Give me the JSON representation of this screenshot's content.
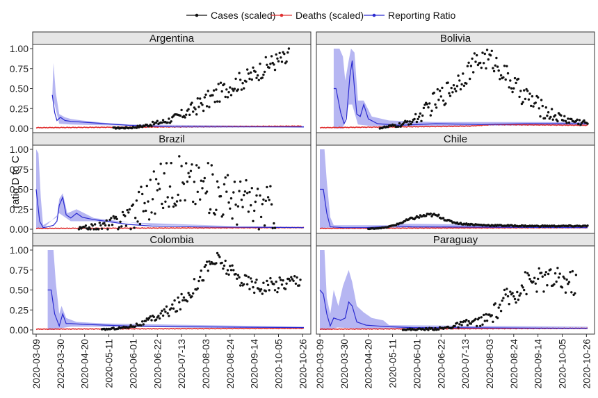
{
  "legend": [
    {
      "label": "Cases (scaled)",
      "color": "#111111"
    },
    {
      "label": "Deaths (scaled)",
      "color": "#e03030"
    },
    {
      "label": "Reporting Ratio",
      "color": "#2a2ad0"
    }
  ],
  "chart_data": {
    "type": "scatter",
    "ylabel": "ratio D to C",
    "ylim": [
      0,
      1
    ],
    "yticks": [
      "0.00",
      "0.25",
      "0.50",
      "0.75",
      "1.00"
    ],
    "xrange": [
      "2020-03-09",
      "2020-10-30"
    ],
    "xticks": [
      "2020-03-09",
      "2020-03-30",
      "2020-04-20",
      "2020-05-11",
      "2020-06-01",
      "2020-06-22",
      "2020-07-13",
      "2020-08-03",
      "2020-08-24",
      "2020-09-14",
      "2020-10-05",
      "2020-10-26"
    ],
    "colors": {
      "cases": "#111111",
      "deaths": "#e03030",
      "ratio": "#2a2ad0",
      "ribbon": "#a9a9f0"
    },
    "panels": [
      {
        "name": "Argentina",
        "cases_start": "2020-05-15",
        "cases": [
          [
            0,
            0.005
          ],
          [
            15,
            0.01
          ],
          [
            25,
            0.03
          ],
          [
            35,
            0.06
          ],
          [
            45,
            0.09
          ],
          [
            55,
            0.14
          ],
          [
            65,
            0.21
          ],
          [
            75,
            0.3
          ],
          [
            85,
            0.38
          ],
          [
            92,
            0.45
          ],
          [
            100,
            0.52
          ],
          [
            108,
            0.58
          ],
          [
            115,
            0.62
          ],
          [
            122,
            0.68
          ],
          [
            130,
            0.76
          ],
          [
            137,
            0.82
          ],
          [
            144,
            0.86
          ],
          [
            150,
            0.85
          ],
          [
            152,
            0.98
          ]
        ],
        "cases_noise": 0.12,
        "deaths": [
          [
            0,
            0.01
          ],
          [
            230,
            0.03
          ]
        ],
        "ratio": [
          [
            14,
            0.42
          ],
          [
            16,
            0.2
          ],
          [
            18,
            0.1
          ],
          [
            21,
            0.14
          ],
          [
            25,
            0.1
          ],
          [
            30,
            0.09
          ],
          [
            40,
            0.08
          ],
          [
            60,
            0.06
          ],
          [
            80,
            0.04
          ],
          [
            100,
            0.03
          ],
          [
            120,
            0.02
          ],
          [
            150,
            0.02
          ],
          [
            232,
            0.02
          ]
        ],
        "ribbon_upper": [
          [
            14,
            0.42
          ],
          [
            15,
            0.82
          ],
          [
            17,
            0.45
          ],
          [
            20,
            0.18
          ],
          [
            25,
            0.14
          ],
          [
            30,
            0.12
          ],
          [
            40,
            0.1
          ],
          [
            60,
            0.07
          ],
          [
            80,
            0.05
          ],
          [
            232,
            0.03
          ]
        ],
        "ribbon_lower": [
          [
            14,
            0.42
          ],
          [
            20,
            0.06
          ],
          [
            30,
            0.05
          ],
          [
            60,
            0.04
          ],
          [
            232,
            0.01
          ]
        ]
      },
      {
        "name": "Bolivia",
        "cases_start": "2020-04-30",
        "cases": [
          [
            0,
            0.005
          ],
          [
            20,
            0.05
          ],
          [
            35,
            0.15
          ],
          [
            45,
            0.3
          ],
          [
            55,
            0.42
          ],
          [
            65,
            0.55
          ],
          [
            75,
            0.7
          ],
          [
            82,
            0.8
          ],
          [
            90,
            0.88
          ],
          [
            98,
            0.85
          ],
          [
            106,
            0.72
          ],
          [
            115,
            0.55
          ],
          [
            125,
            0.42
          ],
          [
            135,
            0.3
          ],
          [
            145,
            0.2
          ],
          [
            155,
            0.14
          ],
          [
            165,
            0.1
          ],
          [
            175,
            0.08
          ],
          [
            180,
            0.07
          ]
        ],
        "cases_noise": 0.14,
        "deaths": [
          [
            0,
            0.01
          ],
          [
            130,
            0.03
          ],
          [
            150,
            0.05
          ],
          [
            232,
            0.04
          ]
        ],
        "ratio": [
          [
            12,
            0.5
          ],
          [
            14,
            0.5
          ],
          [
            18,
            0.2
          ],
          [
            21,
            0.06
          ],
          [
            23,
            0.12
          ],
          [
            26,
            0.65
          ],
          [
            28,
            0.85
          ],
          [
            30,
            0.5
          ],
          [
            32,
            0.18
          ],
          [
            35,
            0.15
          ],
          [
            38,
            0.3
          ],
          [
            42,
            0.12
          ],
          [
            50,
            0.06
          ],
          [
            70,
            0.04
          ],
          [
            100,
            0.06
          ],
          [
            140,
            0.05
          ],
          [
            180,
            0.06
          ],
          [
            232,
            0.06
          ]
        ],
        "ribbon_upper": [
          [
            12,
            1.0
          ],
          [
            17,
            1.0
          ],
          [
            20,
            0.9
          ],
          [
            22,
            0.6
          ],
          [
            25,
            0.85
          ],
          [
            27,
            1.0
          ],
          [
            30,
            0.95
          ],
          [
            33,
            0.35
          ],
          [
            38,
            0.35
          ],
          [
            45,
            0.15
          ],
          [
            60,
            0.1
          ],
          [
            100,
            0.08
          ],
          [
            232,
            0.08
          ]
        ],
        "ribbon_lower": [
          [
            12,
            0.0
          ],
          [
            20,
            0.0
          ],
          [
            25,
            0.3
          ],
          [
            28,
            0.3
          ],
          [
            33,
            0.05
          ],
          [
            45,
            0.03
          ],
          [
            232,
            0.04
          ]
        ]
      },
      {
        "name": "Brazil",
        "cases_start": "2020-04-15",
        "cases": [
          [
            0,
            0.005
          ],
          [
            20,
            0.04
          ],
          [
            35,
            0.1
          ],
          [
            50,
            0.25
          ],
          [
            60,
            0.4
          ],
          [
            70,
            0.5
          ],
          [
            80,
            0.58
          ],
          [
            90,
            0.62
          ],
          [
            100,
            0.55
          ],
          [
            110,
            0.52
          ],
          [
            120,
            0.48
          ],
          [
            130,
            0.4
          ],
          [
            140,
            0.35
          ],
          [
            150,
            0.32
          ],
          [
            160,
            0.28
          ],
          [
            170,
            0.28
          ]
        ],
        "cases_noise": 0.32,
        "deaths": [
          [
            0,
            0.01
          ],
          [
            232,
            0.02
          ]
        ],
        "ratio": [
          [
            0,
            0.5
          ],
          [
            3,
            0.1
          ],
          [
            6,
            0.02
          ],
          [
            10,
            0.03
          ],
          [
            15,
            0.05
          ],
          [
            18,
            0.1
          ],
          [
            20,
            0.3
          ],
          [
            23,
            0.4
          ],
          [
            26,
            0.18
          ],
          [
            30,
            0.14
          ],
          [
            35,
            0.2
          ],
          [
            40,
            0.15
          ],
          [
            50,
            0.12
          ],
          [
            60,
            0.1
          ],
          [
            80,
            0.06
          ],
          [
            100,
            0.04
          ],
          [
            140,
            0.03
          ],
          [
            232,
            0.02
          ]
        ],
        "ribbon_upper": [
          [
            0,
            1.0
          ],
          [
            2,
            0.95
          ],
          [
            4,
            0.4
          ],
          [
            6,
            0.05
          ],
          [
            18,
            0.15
          ],
          [
            20,
            0.38
          ],
          [
            23,
            0.45
          ],
          [
            27,
            0.2
          ],
          [
            35,
            0.25
          ],
          [
            50,
            0.14
          ],
          [
            100,
            0.05
          ],
          [
            232,
            0.03
          ]
        ],
        "ribbon_lower": [
          [
            0,
            0.0
          ],
          [
            6,
            0.01
          ],
          [
            20,
            0.2
          ],
          [
            30,
            0.1
          ],
          [
            50,
            0.1
          ],
          [
            232,
            0.01
          ]
        ]
      },
      {
        "name": "Chile",
        "cases_start": "2020-04-20",
        "cases": [
          [
            0,
            0.005
          ],
          [
            15,
            0.02
          ],
          [
            25,
            0.06
          ],
          [
            35,
            0.12
          ],
          [
            45,
            0.16
          ],
          [
            55,
            0.18
          ],
          [
            62,
            0.16
          ],
          [
            70,
            0.1
          ],
          [
            80,
            0.07
          ],
          [
            100,
            0.05
          ],
          [
            140,
            0.04
          ],
          [
            180,
            0.04
          ],
          [
            190,
            0.04
          ]
        ],
        "cases_noise": 0.04,
        "deaths": [
          [
            0,
            0.01
          ],
          [
            232,
            0.02
          ]
        ],
        "ratio": [
          [
            0,
            0.5
          ],
          [
            3,
            0.5
          ],
          [
            6,
            0.2
          ],
          [
            9,
            0.03
          ],
          [
            20,
            0.02
          ],
          [
            40,
            0.02
          ],
          [
            65,
            0.04
          ],
          [
            80,
            0.03
          ],
          [
            232,
            0.02
          ]
        ],
        "ribbon_upper": [
          [
            0,
            1.0
          ],
          [
            4,
            1.0
          ],
          [
            6,
            0.6
          ],
          [
            9,
            0.15
          ],
          [
            12,
            0.05
          ],
          [
            60,
            0.05
          ],
          [
            70,
            0.07
          ],
          [
            232,
            0.04
          ]
        ],
        "ribbon_lower": [
          [
            0,
            0.0
          ],
          [
            6,
            0.02
          ],
          [
            232,
            0.01
          ]
        ]
      },
      {
        "name": "Colombia",
        "cases_start": "2020-05-05",
        "cases": [
          [
            0,
            0.005
          ],
          [
            20,
            0.03
          ],
          [
            35,
            0.08
          ],
          [
            50,
            0.18
          ],
          [
            65,
            0.3
          ],
          [
            75,
            0.45
          ],
          [
            85,
            0.65
          ],
          [
            92,
            0.8
          ],
          [
            100,
            0.88
          ],
          [
            108,
            0.78
          ],
          [
            115,
            0.68
          ],
          [
            125,
            0.6
          ],
          [
            135,
            0.55
          ],
          [
            145,
            0.55
          ],
          [
            155,
            0.58
          ],
          [
            165,
            0.62
          ],
          [
            172,
            0.65
          ]
        ],
        "cases_noise": 0.1,
        "deaths": [
          [
            0,
            0.01
          ],
          [
            232,
            0.02
          ]
        ],
        "ratio": [
          [
            10,
            0.5
          ],
          [
            13,
            0.5
          ],
          [
            16,
            0.2
          ],
          [
            20,
            0.05
          ],
          [
            23,
            0.2
          ],
          [
            26,
            0.08
          ],
          [
            30,
            0.08
          ],
          [
            40,
            0.07
          ],
          [
            60,
            0.06
          ],
          [
            80,
            0.05
          ],
          [
            110,
            0.04
          ],
          [
            232,
            0.03
          ]
        ],
        "ribbon_upper": [
          [
            10,
            1.0
          ],
          [
            15,
            1.0
          ],
          [
            17,
            0.6
          ],
          [
            20,
            0.2
          ],
          [
            22,
            0.3
          ],
          [
            26,
            0.15
          ],
          [
            35,
            0.1
          ],
          [
            60,
            0.08
          ],
          [
            232,
            0.04
          ]
        ],
        "ribbon_lower": [
          [
            10,
            0.0
          ],
          [
            16,
            0.0
          ],
          [
            20,
            0.02
          ],
          [
            30,
            0.04
          ],
          [
            60,
            0.04
          ],
          [
            232,
            0.02
          ]
        ]
      },
      {
        "name": "Paraguay",
        "cases_start": "2020-05-20",
        "cases": [
          [
            0,
            0.005
          ],
          [
            20,
            0.01
          ],
          [
            35,
            0.02
          ],
          [
            45,
            0.05
          ],
          [
            55,
            0.08
          ],
          [
            65,
            0.1
          ],
          [
            75,
            0.15
          ],
          [
            85,
            0.3
          ],
          [
            95,
            0.45
          ],
          [
            105,
            0.58
          ],
          [
            115,
            0.62
          ],
          [
            125,
            0.63
          ],
          [
            135,
            0.62
          ],
          [
            145,
            0.6
          ],
          [
            150,
            0.58
          ]
        ],
        "cases_noise": 0.16,
        "deaths": [
          [
            0,
            0.01
          ],
          [
            232,
            0.02
          ]
        ],
        "ratio": [
          [
            0,
            0.5
          ],
          [
            3,
            0.45
          ],
          [
            6,
            0.2
          ],
          [
            9,
            0.05
          ],
          [
            12,
            0.15
          ],
          [
            18,
            0.12
          ],
          [
            22,
            0.15
          ],
          [
            25,
            0.35
          ],
          [
            28,
            0.3
          ],
          [
            32,
            0.1
          ],
          [
            36,
            0.08
          ],
          [
            40,
            0.06
          ],
          [
            50,
            0.05
          ],
          [
            60,
            0.04
          ],
          [
            80,
            0.03
          ],
          [
            232,
            0.02
          ]
        ],
        "ribbon_upper": [
          [
            0,
            1.0
          ],
          [
            4,
            1.0
          ],
          [
            6,
            0.4
          ],
          [
            9,
            0.2
          ],
          [
            12,
            0.5
          ],
          [
            16,
            0.3
          ],
          [
            20,
            0.55
          ],
          [
            25,
            0.75
          ],
          [
            28,
            0.6
          ],
          [
            32,
            0.3
          ],
          [
            38,
            0.22
          ],
          [
            45,
            0.15
          ],
          [
            55,
            0.12
          ],
          [
            60,
            0.06
          ],
          [
            232,
            0.04
          ]
        ],
        "ribbon_lower": [
          [
            0,
            0.0
          ],
          [
            8,
            0.0
          ],
          [
            15,
            0.03
          ],
          [
            30,
            0.02
          ],
          [
            60,
            0.01
          ],
          [
            232,
            0.01
          ]
        ]
      }
    ]
  }
}
